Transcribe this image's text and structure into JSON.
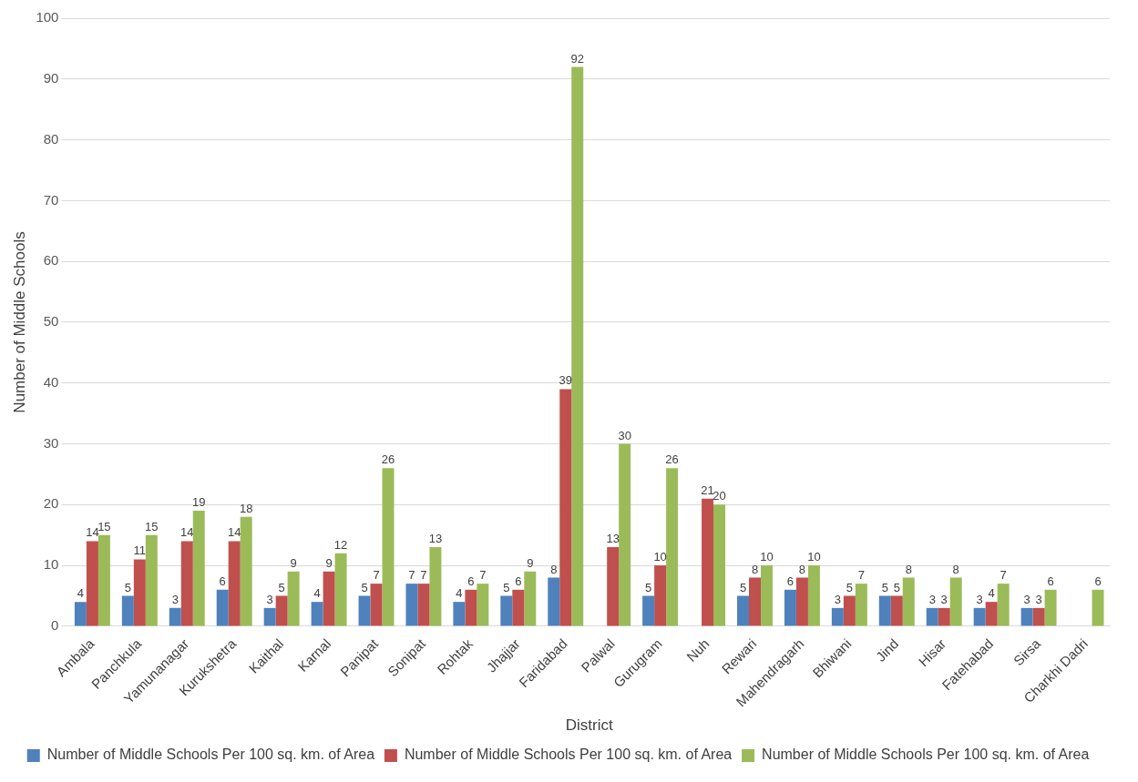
{
  "chart_data": {
    "type": "bar",
    "xlabel": "District",
    "ylabel": "Number of Middle Schools",
    "categories": [
      "Ambala",
      "Panchkula",
      "Yamunanagar",
      "Kurukshetra",
      "Kaithal",
      "Karnal",
      "Panipat",
      "Sonipat",
      "Rohtak",
      "Jhajjar",
      "Faridabad",
      "Palwal",
      "Gurugram",
      "Nuh",
      "Rewari",
      "Mahendragarh",
      "Bhiwani",
      "Jind",
      "Hisar",
      "Fatehabad",
      "Sirsa",
      "Charkhi Dadri"
    ],
    "series": [
      {
        "name": "Number of Middle Schools Per 100 sq. km. of Area",
        "color": "#4f81bd",
        "values": [
          4,
          5,
          3,
          6,
          3,
          4,
          5,
          7,
          4,
          5,
          8,
          null,
          5,
          null,
          5,
          6,
          3,
          5,
          3,
          3,
          3,
          null
        ]
      },
      {
        "name": "Number of Middle Schools Per 100 sq. km. of Area",
        "color": "#c0504d",
        "values": [
          14,
          11,
          14,
          14,
          5,
          9,
          7,
          7,
          6,
          6,
          39,
          13,
          10,
          21,
          8,
          8,
          5,
          5,
          3,
          4,
          3,
          null
        ]
      },
      {
        "name": "Number of Middle Schools Per 100 sq. km. of Area",
        "color": "#9bbb59",
        "values": [
          15,
          15,
          19,
          18,
          9,
          12,
          26,
          13,
          7,
          9,
          92,
          30,
          26,
          20,
          10,
          10,
          7,
          8,
          8,
          7,
          6,
          6
        ]
      }
    ],
    "ylim": [
      0,
      100
    ],
    "yticks": [
      0,
      10,
      20,
      30,
      40,
      50,
      60,
      70,
      80,
      90,
      100
    ],
    "grid": "y",
    "legend": "bottom",
    "data_labels": true
  }
}
